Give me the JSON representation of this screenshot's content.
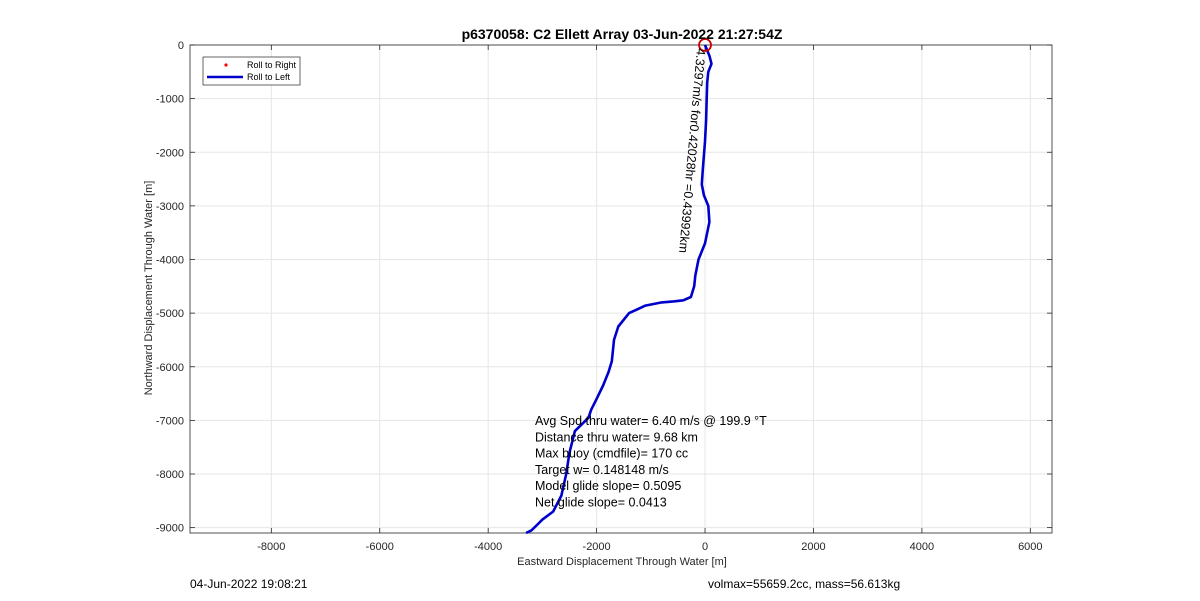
{
  "chart_data": {
    "type": "line",
    "title": "p6370058: C2 Ellett Array 03-Jun-2022 21:27:54Z",
    "xlabel": "Eastward Displacement Through Water [m]",
    "ylabel": "Northward Displacement Through Water [m]",
    "xlim": [
      -9500,
      6400
    ],
    "ylim": [
      -9100,
      0
    ],
    "xticks": [
      -8000,
      -6000,
      -4000,
      -2000,
      0,
      2000,
      4000,
      6000
    ],
    "yticks": [
      0,
      -1000,
      -2000,
      -3000,
      -4000,
      -5000,
      -6000,
      -7000,
      -8000,
      -9000
    ],
    "grid": true,
    "legend_position": "top-left",
    "series": [
      {
        "name": "Roll to Right",
        "color": "#ff0000",
        "marker": "dot",
        "x": [],
        "y": []
      },
      {
        "name": "Roll to Left",
        "color": "#0000cc",
        "x": [
          0,
          80,
          120,
          60,
          40,
          30,
          20,
          0,
          -40,
          -60,
          -20,
          60,
          80,
          0,
          -120,
          -180,
          -200,
          -260,
          -400,
          -560,
          -800,
          -1100,
          -1400,
          -1600,
          -1680,
          -1700,
          -1720,
          -1780,
          -1880,
          -2000,
          -2100,
          -2150,
          -2250,
          -2400,
          -2500,
          -2560,
          -2650,
          -2800,
          -3000,
          -3100,
          -3200,
          -3300
        ],
        "y": [
          0,
          -200,
          -350,
          -500,
          -700,
          -1000,
          -1400,
          -1800,
          -2300,
          -2600,
          -2800,
          -3000,
          -3300,
          -3700,
          -4000,
          -4300,
          -4500,
          -4700,
          -4760,
          -4780,
          -4800,
          -4860,
          -5000,
          -5250,
          -5500,
          -5700,
          -5900,
          -6100,
          -6350,
          -6600,
          -6800,
          -6950,
          -7050,
          -7200,
          -7600,
          -8000,
          -8400,
          -8700,
          -8850,
          -8950,
          -9050,
          -9100
        ]
      }
    ],
    "annotations": {
      "rotated_label": "4.3297m/s for0.42028hr =0.43992km",
      "start_marker_color": "#cc0000",
      "stats": [
        "Avg Spd thru water=  6.40 m/s @ 199.9 °T",
        "Distance thru water=  9.68 km",
        "Max buoy (cmdfile)= 170 cc",
        "Target w= 0.148148 m/s",
        "Model glide slope= 0.5095",
        "Net glide slope= 0.0413"
      ]
    },
    "footer_left": "04-Jun-2022 19:08:21",
    "footer_right": "volmax=55659.2cc, mass=56.613kg"
  }
}
